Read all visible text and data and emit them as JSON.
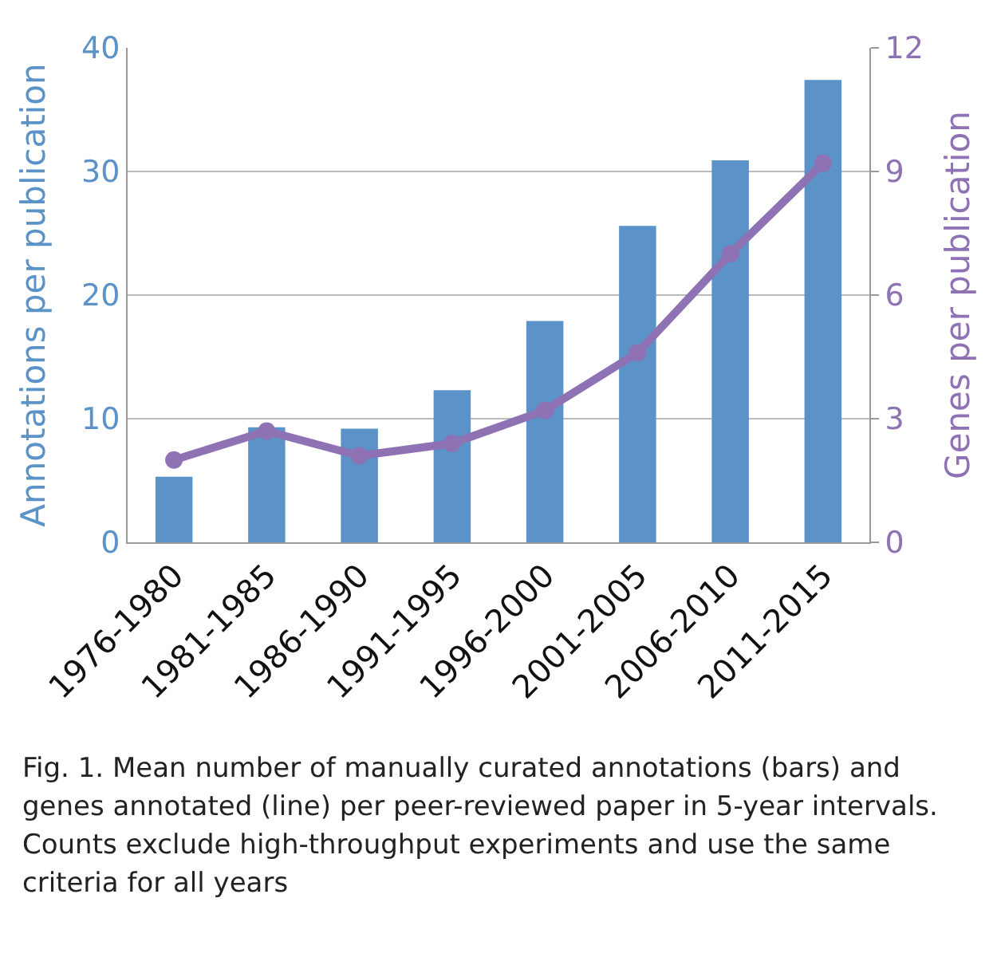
{
  "chart_data": {
    "type": "bar",
    "categories": [
      "1976-1980",
      "1981-1985",
      "1986-1990",
      "1991-1995",
      "1996-2000",
      "2001-2005",
      "2006-2010",
      "2011-2015"
    ],
    "series": [
      {
        "color": "#5b93c8",
        "values": [
          5.3,
          9.3,
          9.2,
          12.3,
          17.9,
          25.6,
          30.9,
          37.4
        ]
      },
      {
        "type": "line",
        "axis": "y2",
        "color": "#8e72b4",
        "marker": "circle",
        "values": [
          2.0,
          2.7,
          2.1,
          2.4,
          3.2,
          4.6,
          7.0,
          9.2
        ]
      }
    ],
    "ylabel": "Annotations per publication",
    "y2label": "Genes per publication",
    "ylim": [
      0,
      40
    ],
    "yticks": [
      0,
      10,
      20,
      30,
      40
    ],
    "y2lim": [
      0,
      12
    ],
    "y2ticks": [
      0,
      3,
      6,
      9,
      12
    ],
    "grid": "y",
    "legend": false,
    "annotations": [
      "Fig. 1. Mean number of manually curated annotations (bars) and genes annotated (line) per peer-reviewed paper in 5-year intervals. Counts exclude high-throughput experiments and use the same criteria for all years"
    ]
  }
}
